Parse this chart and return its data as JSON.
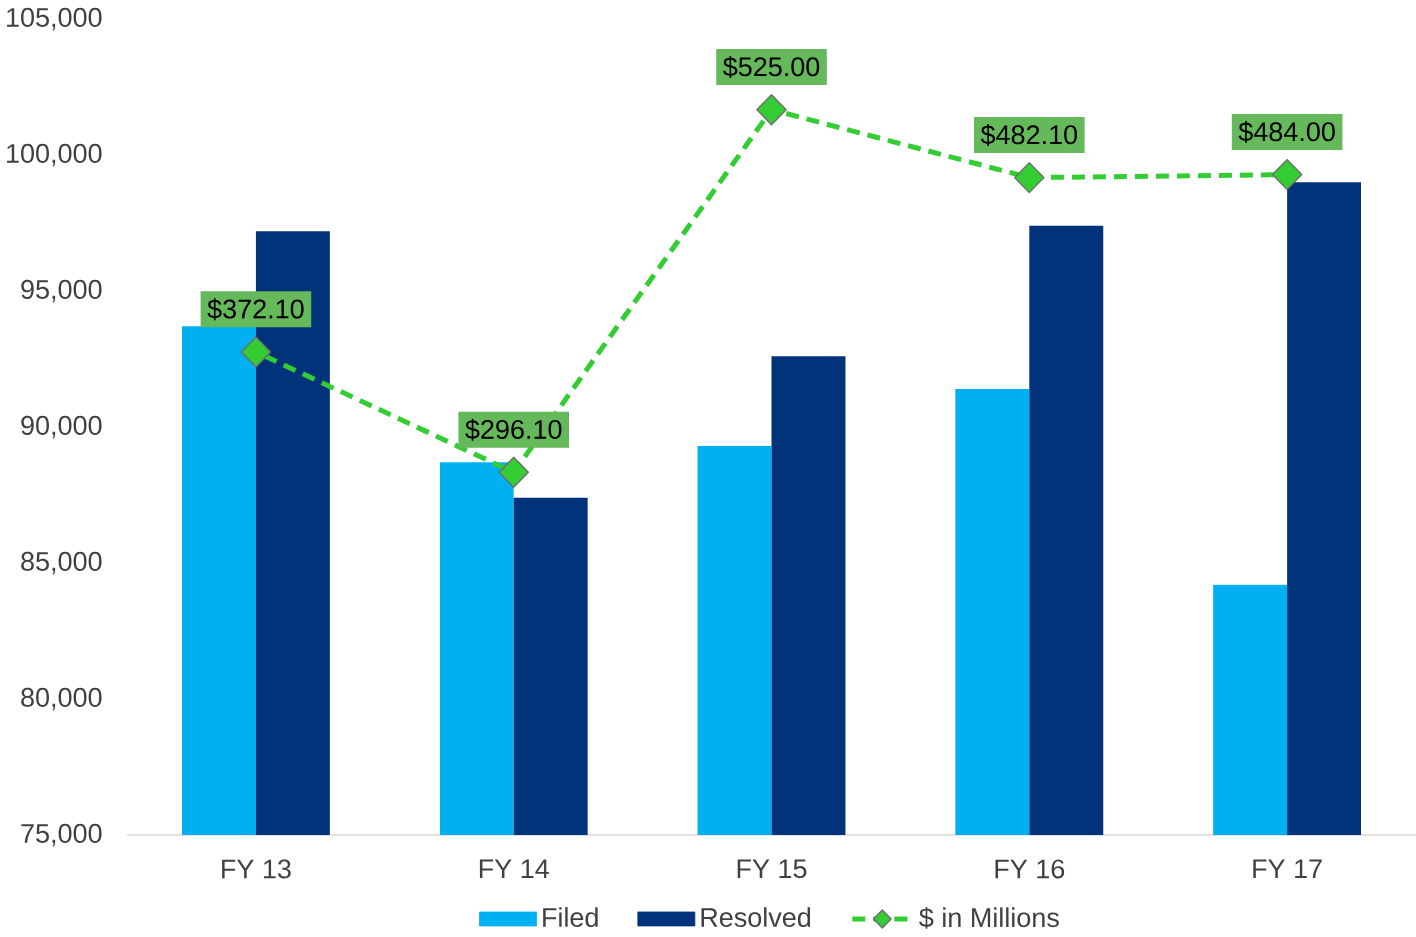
{
  "chart_data": {
    "type": "bar",
    "categories": [
      "FY 13",
      "FY 14",
      "FY 15",
      "FY 16",
      "FY 17"
    ],
    "series": [
      {
        "name": "Filed",
        "color": "#00b0f0",
        "values": [
          93700,
          88700,
          89300,
          91400,
          84200
        ]
      },
      {
        "name": "Resolved",
        "color": "#00337a",
        "values": [
          97200,
          87400,
          92600,
          97400,
          99000
        ]
      },
      {
        "name": "$ in Millions",
        "type": "line",
        "axis": "y2",
        "color": "#33cc33",
        "marker": "diamond",
        "line_style": "dashed",
        "values": [
          372.1,
          296.1,
          525.0,
          482.1,
          484.0
        ],
        "value_labels": [
          "$372.10",
          "$296.10",
          "$525.00",
          "$482.10",
          "$484.00"
        ]
      }
    ],
    "ylim": [
      75000,
      105000
    ],
    "yticks": [
      {
        "value": 75000,
        "label": "75,000"
      },
      {
        "value": 80000,
        "label": "80,000"
      },
      {
        "value": 85000,
        "label": "85,000"
      },
      {
        "value": 90000,
        "label": "90,000"
      },
      {
        "value": 95000,
        "label": "95,000"
      },
      {
        "value": 100000,
        "label": "100,000"
      },
      {
        "value": 105000,
        "label": "105,000"
      }
    ],
    "legend": "bottom"
  }
}
